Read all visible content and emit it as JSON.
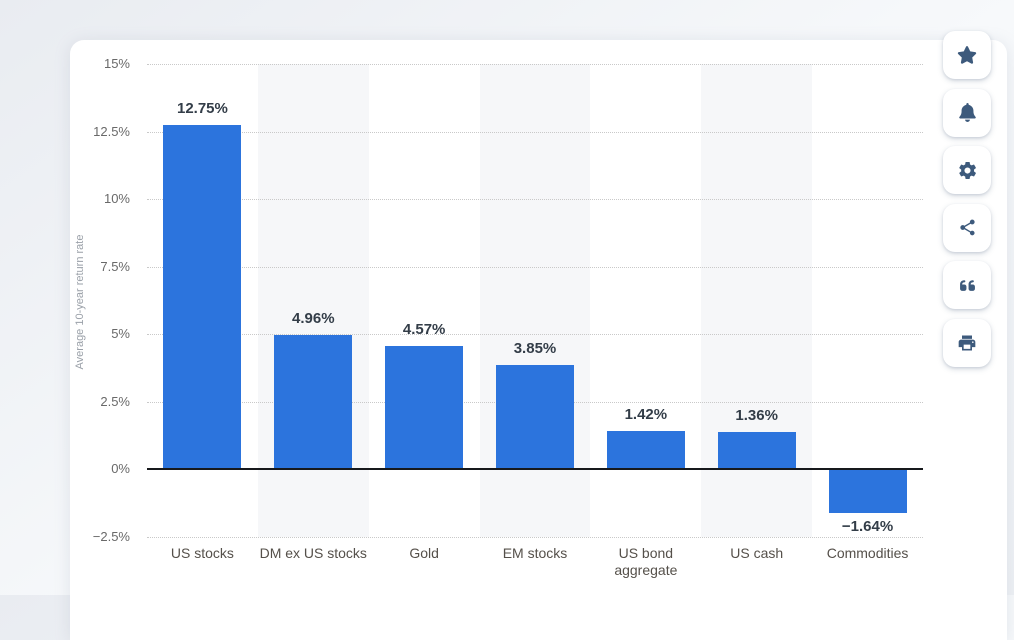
{
  "chart_data": {
    "type": "bar",
    "categories": [
      "US stocks",
      "DM ex US stocks",
      "Gold",
      "EM stocks",
      "US bond aggregate",
      "US cash",
      "Commodities"
    ],
    "values": [
      12.75,
      4.96,
      4.57,
      3.85,
      1.42,
      1.36,
      -1.64
    ],
    "value_labels": [
      "12.75%",
      "4.96%",
      "4.57%",
      "3.85%",
      "1.42%",
      "1.36%",
      "−1.64%"
    ],
    "title": "",
    "xlabel": "",
    "ylabel": "Average 10-year return rate",
    "ylim": [
      -2.5,
      15
    ],
    "yticks": [
      15,
      12.5,
      10,
      7.5,
      5,
      2.5,
      0,
      -2.5
    ],
    "ytick_labels": [
      "15%",
      "12.5%",
      "10%",
      "7.5%",
      "5%",
      "2.5%",
      "0%",
      "−2.5%"
    ],
    "legend": null,
    "grid": "horizontal-dotted",
    "zero_line": true,
    "bar_color": "#2c74dd",
    "band_color": "#f6f7f9",
    "value_label_color": "#333d48",
    "category_label_color": "#55504a",
    "axis_label_color": "#9aa0a8"
  },
  "toolbar": {
    "icon_color": "#3d5a7c",
    "buttons": [
      {
        "icon": "star-icon"
      },
      {
        "icon": "bell-icon"
      },
      {
        "icon": "gear-icon"
      },
      {
        "icon": "share-icon"
      },
      {
        "icon": "quote-icon"
      },
      {
        "icon": "printer-icon"
      }
    ]
  }
}
